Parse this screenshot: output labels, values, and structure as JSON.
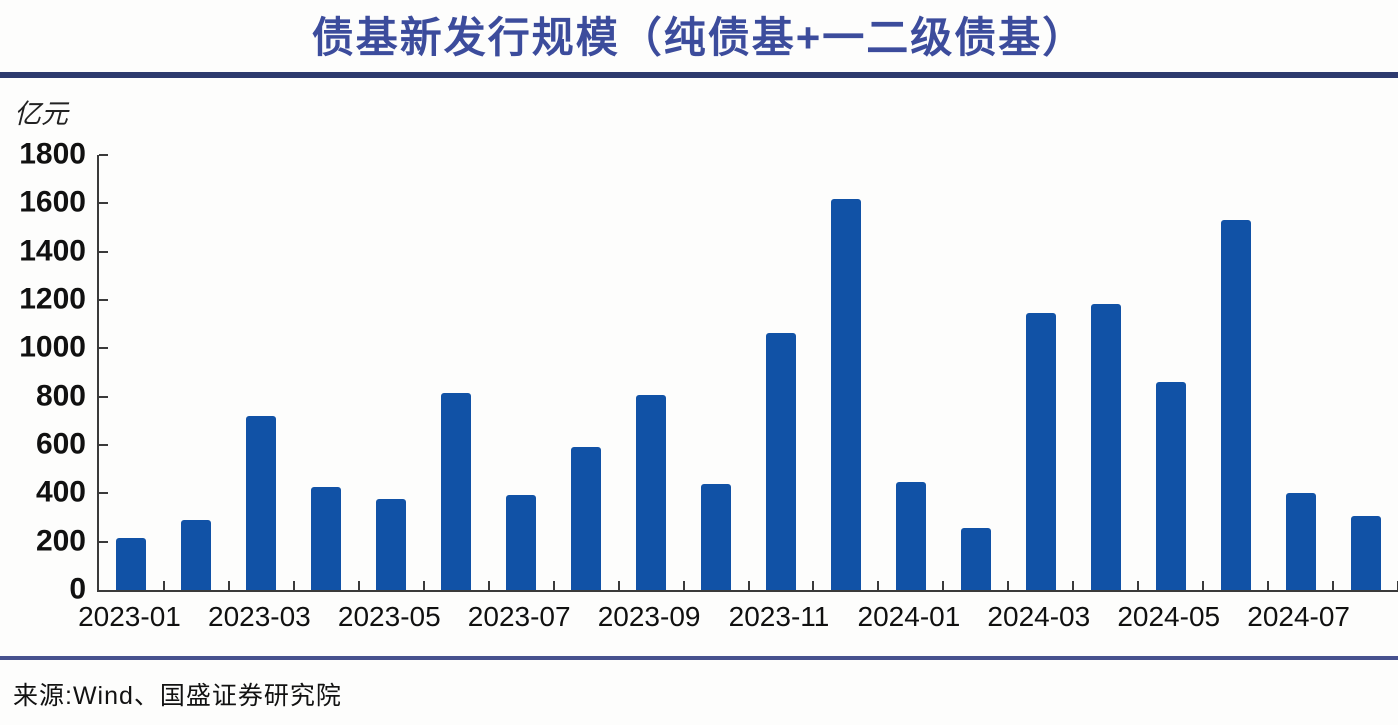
{
  "title": "债基新发行规模（纯债基+一二级债基）",
  "source": "来源:Wind、国盛证券研究院",
  "colors": {
    "title_text": "#3c4c9c",
    "divider_top": "#2d3a6e",
    "divider_bottom": "#47518e",
    "bar": "#1152a6",
    "axis": "#3a3a3a",
    "tick_text": "#111111"
  },
  "chart_data": {
    "type": "bar",
    "title": "债基新发行规模（纯债基+一二级债基）",
    "xlabel": "",
    "ylabel": "亿元",
    "ylim": [
      0,
      1800
    ],
    "ytick_step": 200,
    "grid": false,
    "legend_position": "none",
    "categories": [
      "2023-01",
      "2023-02",
      "2023-03",
      "2023-04",
      "2023-05",
      "2023-06",
      "2023-07",
      "2023-08",
      "2023-09",
      "2023-10",
      "2023-11",
      "2023-12",
      "2024-01",
      "2024-02",
      "2024-03",
      "2024-04",
      "2024-05",
      "2024-06",
      "2024-07",
      "2024-08"
    ],
    "values": [
      215,
      290,
      720,
      425,
      375,
      815,
      395,
      590,
      805,
      440,
      1065,
      1620,
      445,
      255,
      1145,
      1185,
      860,
      1530,
      400,
      305
    ],
    "x_tick_labels": [
      "2023-01",
      "2023-03",
      "2023-05",
      "2023-07",
      "2023-09",
      "2023-11",
      "2024-01",
      "2024-03",
      "2024-05",
      "2024-07"
    ]
  }
}
